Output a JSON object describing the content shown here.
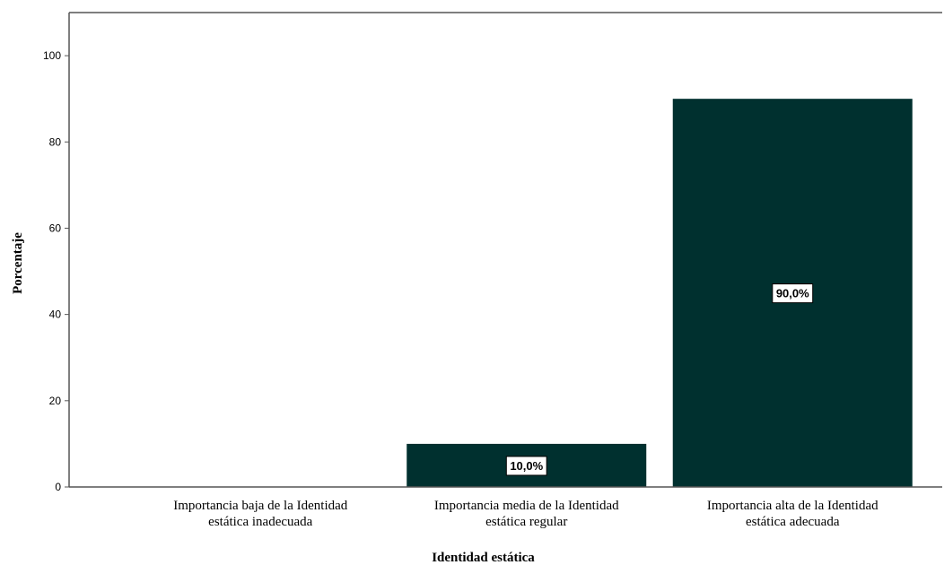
{
  "chart_data": {
    "type": "bar",
    "categories": [
      [
        "Importancia baja de la Identidad",
        "estática inadecuada"
      ],
      [
        "Importancia media de la Identidad",
        "estática regular"
      ],
      [
        "Importancia alta de la Identidad",
        "estática adecuada"
      ]
    ],
    "values": [
      0,
      10,
      90
    ],
    "data_labels": [
      "",
      "10,0%",
      "90,0%"
    ],
    "title": "",
    "xlabel": "Identidad estática",
    "ylabel": "Porcentaje",
    "ylim": [
      0,
      110
    ],
    "yticks": [
      0,
      20,
      40,
      60,
      80,
      100
    ],
    "grid": false,
    "colors": {
      "bar": "#00302f",
      "axis": "#555555",
      "label_box": "#ffffff"
    }
  }
}
